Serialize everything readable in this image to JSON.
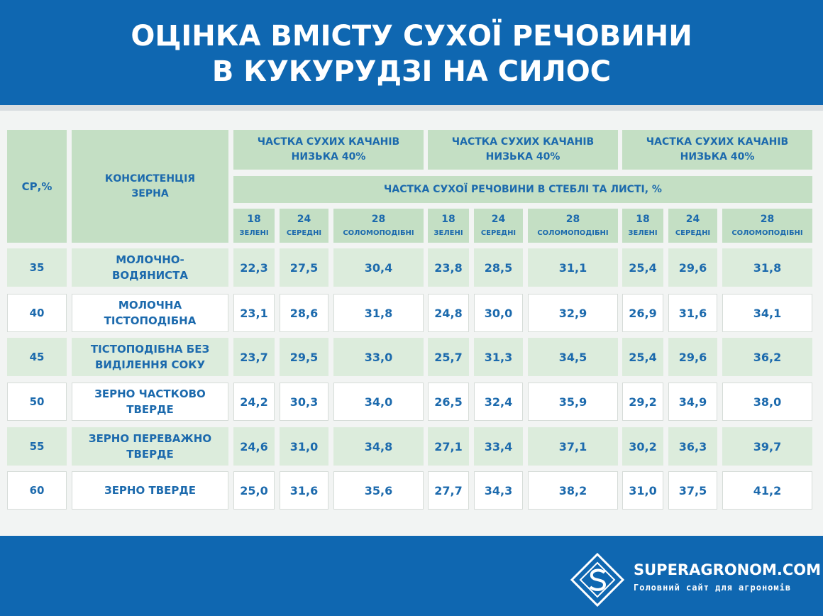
{
  "header": {
    "title": [
      "ОЦІНКА ВМІСТУ СУХОЇ РЕЧОВИНИ",
      "В КУКУРУДЗІ НА СИЛОС"
    ]
  },
  "table": {
    "col_headers": [
      [
        "СР,%"
      ],
      [
        "КОНСИСТЕНЦІЯ",
        "ЗЕРНА"
      ]
    ],
    "groups": [
      [
        "ЧАСТКА СУХИХ КАЧАНІВ",
        "НИЗЬКА 40%"
      ],
      [
        "ЧАСТКА СУХИХ КАЧАНІВ",
        "НИЗЬКА 40%"
      ],
      [
        "ЧАСТКА СУХИХ КАЧАНІВ",
        "НИЗЬКА 40%"
      ]
    ],
    "subheader": "ЧАСТКА СУХОЇ РЕЧОВИНИ В СТЕБЛІ ТА ЛИСТІ, %",
    "subcolumns": [
      [
        "18",
        "ЗЕЛЕНІ"
      ],
      [
        "24",
        "СЕРЕДНІ"
      ],
      [
        "28",
        "СОЛОМОПОДІБНІ"
      ],
      [
        "18",
        "ЗЕЛЕНІ"
      ],
      [
        "24",
        "СЕРЕДНІ"
      ],
      [
        "28",
        "СОЛОМОПОДІБНІ"
      ],
      [
        "18",
        "ЗЕЛЕНІ"
      ],
      [
        "24",
        "СЕРЕДНІ"
      ],
      [
        "28",
        "СОЛОМОПОДІБНІ"
      ]
    ],
    "rows": [
      {
        "cp": "35",
        "consistency": [
          "МОЛОЧНО-",
          "ВОДЯНИСТА"
        ],
        "values": [
          "22,3",
          "27,5",
          "30,4",
          "23,8",
          "28,5",
          "31,1",
          "25,4",
          "29,6",
          "31,8"
        ]
      },
      {
        "cp": "40",
        "consistency": [
          "МОЛОЧНА",
          "ТІСТОПОДІБНА"
        ],
        "values": [
          "23,1",
          "28,6",
          "31,8",
          "24,8",
          "30,0",
          "32,9",
          "26,9",
          "31,6",
          "34,1"
        ]
      },
      {
        "cp": "45",
        "consistency": [
          "ТІСТОПОДІБНА БЕЗ",
          "ВИДІЛЕННЯ СОКУ"
        ],
        "values": [
          "23,7",
          "29,5",
          "33,0",
          "25,7",
          "31,3",
          "34,5",
          "25,4",
          "29,6",
          "36,2"
        ]
      },
      {
        "cp": "50",
        "consistency": [
          "ЗЕРНО ЧАСТКОВО",
          "ТВЕРДЕ"
        ],
        "values": [
          "24,2",
          "30,3",
          "34,0",
          "26,5",
          "32,4",
          "35,9",
          "29,2",
          "34,9",
          "38,0"
        ]
      },
      {
        "cp": "55",
        "consistency": [
          "ЗЕРНО ПЕРЕВАЖНО",
          "ТВЕРДЕ"
        ],
        "values": [
          "24,6",
          "31,0",
          "34,8",
          "27,1",
          "33,4",
          "37,1",
          "30,2",
          "36,3",
          "39,7"
        ]
      },
      {
        "cp": "60",
        "consistency": [
          "ЗЕРНО ТВЕРДЕ"
        ],
        "values": [
          "25,0",
          "31,6",
          "35,6",
          "27,7",
          "34,3",
          "38,2",
          "31,0",
          "37,5",
          "41,2"
        ]
      }
    ]
  },
  "footer": {
    "brand": "SUPERAGRONOM.COM",
    "tagline": "Головний сайт для агрономів"
  }
}
